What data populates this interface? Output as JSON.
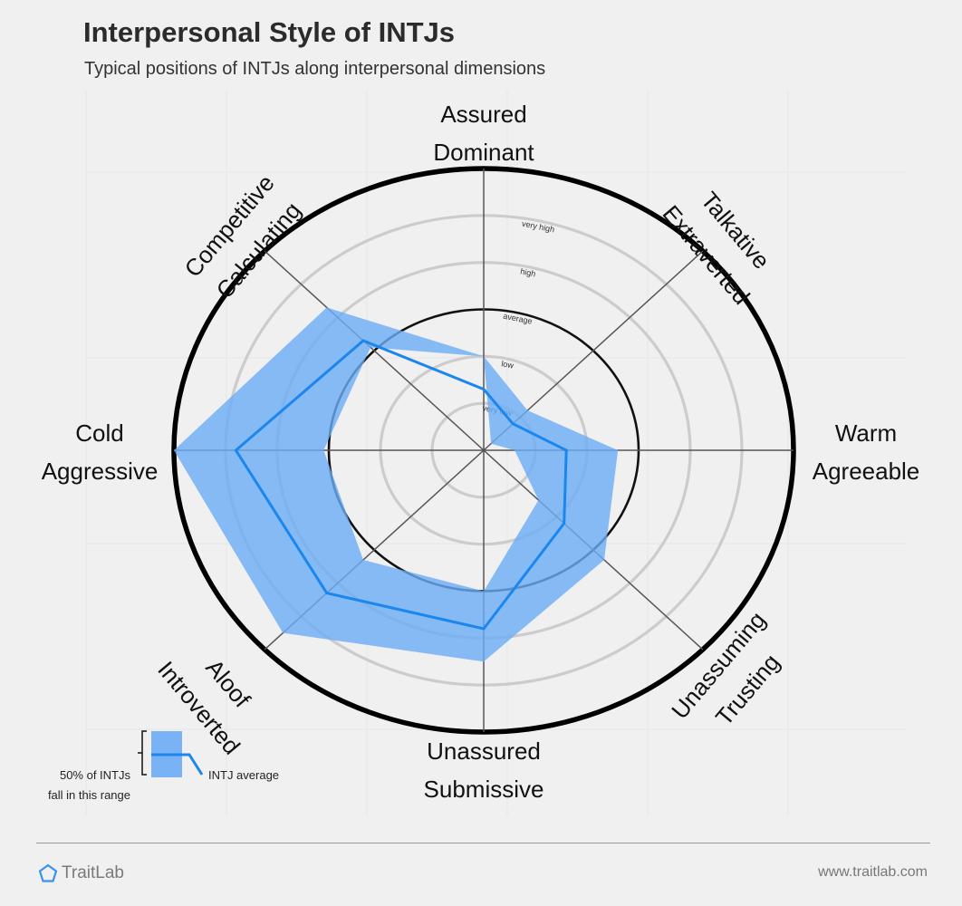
{
  "page": {
    "title": "Interpersonal Style of INTJs",
    "subtitle": "Typical positions of INTJs along interpersonal dimensions"
  },
  "chart_data": {
    "type": "radar",
    "title": "Interpersonal Style of INTJs",
    "subtitle": "Typical positions of INTJs along interpersonal dimensions",
    "axes": [
      {
        "label": [
          "Assured",
          "Dominant"
        ]
      },
      {
        "label": [
          "Talkative",
          "Extraverted"
        ]
      },
      {
        "label": [
          "Warm",
          "Agreeable"
        ]
      },
      {
        "label": [
          "Unassuming",
          "Trusting"
        ]
      },
      {
        "label": [
          "Unassured",
          "Submissive"
        ]
      },
      {
        "label": [
          "Aloof",
          "Introverted"
        ]
      },
      {
        "label": [
          "Cold",
          "Aggressive"
        ]
      },
      {
        "label": [
          "Competitive",
          "Calculating"
        ]
      }
    ],
    "scale": {
      "min": 0,
      "max": 6,
      "levels": [
        1,
        2,
        3,
        4,
        5
      ],
      "average_level": 3
    },
    "level_labels": [
      "very low",
      "low",
      "average",
      "high",
      "very high"
    ],
    "range_low": [
      2.0,
      0.2,
      0.6,
      1.5,
      3.0,
      3.3,
      3.1,
      3.1
    ],
    "range_high": [
      2.0,
      1.2,
      2.6,
      3.3,
      4.5,
      5.5,
      6.0,
      4.3
    ],
    "average": [
      1.3,
      0.8,
      1.6,
      2.2,
      3.8,
      4.3,
      4.8,
      3.3
    ],
    "colors": {
      "band": "#6cacf6",
      "line": "#1b87ee",
      "outer_ring": "#000000",
      "grid_ring": "#cccccc",
      "spoke": "#555555"
    }
  },
  "legend": {
    "range_label": [
      "50% of INTJs",
      "fall in this range"
    ],
    "average_label": "INTJ average"
  },
  "footer": {
    "brand": "TraitLab",
    "url": "www.traitlab.com"
  }
}
